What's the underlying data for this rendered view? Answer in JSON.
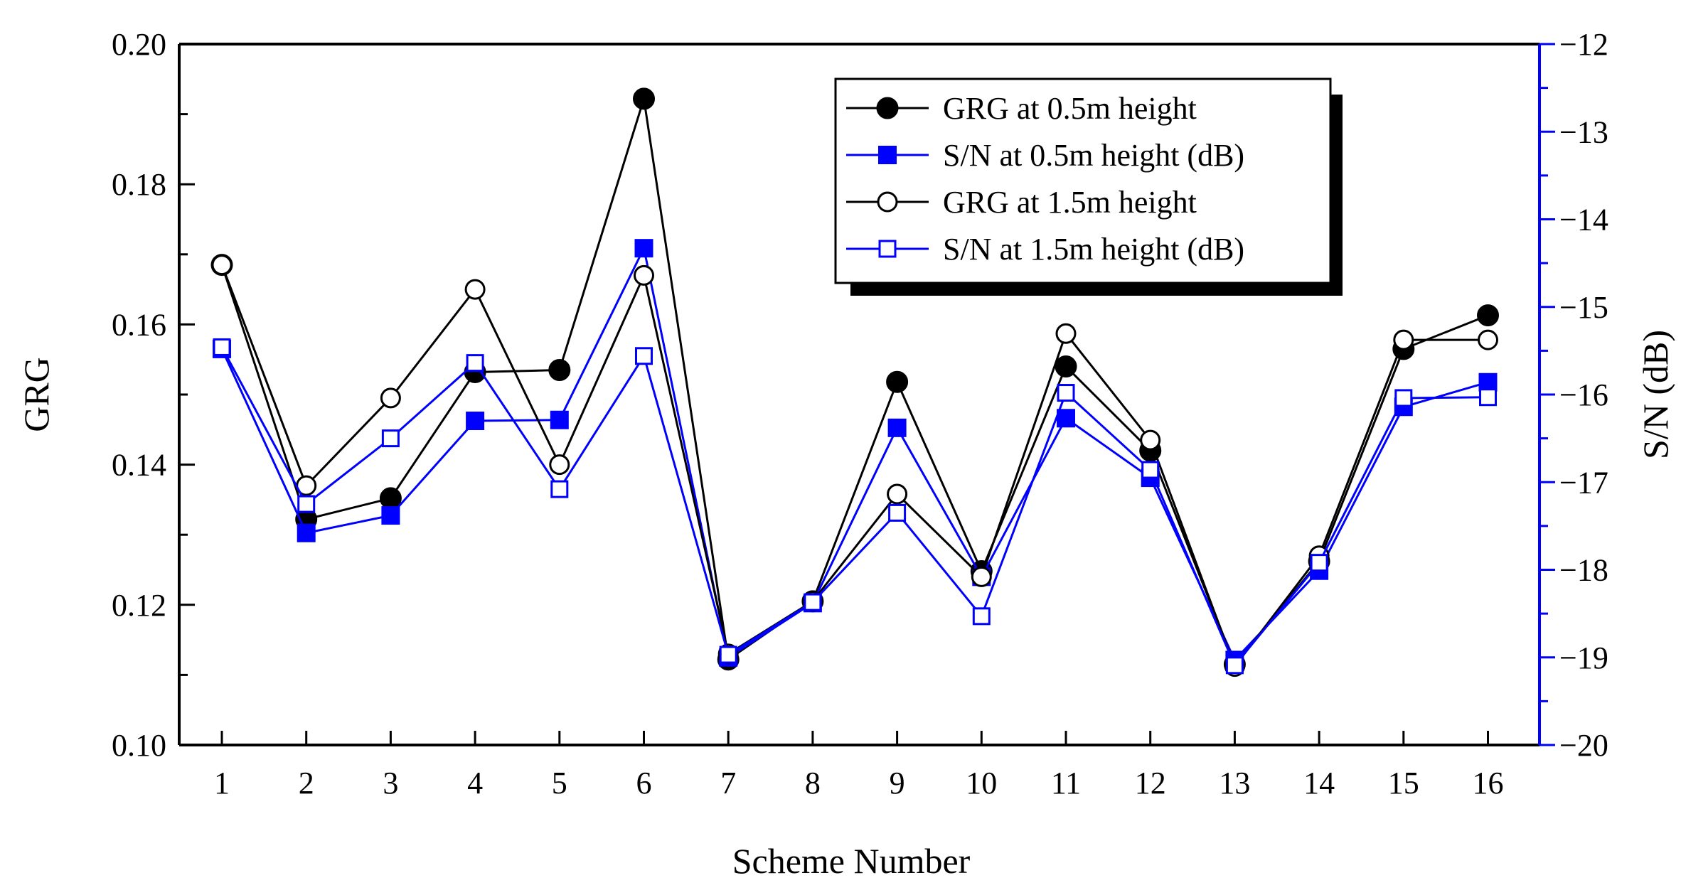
{
  "chart_data": {
    "type": "line",
    "xlabel": "Scheme Number",
    "ylabel_left": "GRG",
    "ylabel_right": "S/N (dB)",
    "categories": [
      "1",
      "2",
      "3",
      "4",
      "5",
      "6",
      "7",
      "8",
      "9",
      "10",
      "11",
      "12",
      "13",
      "14",
      "15",
      "16"
    ],
    "left_axis": {
      "ylim": [
        0.1,
        0.2
      ],
      "ticks": [
        0.1,
        0.12,
        0.14,
        0.16,
        0.18,
        0.2
      ],
      "tick_labels": [
        "0.10",
        "0.12",
        "0.14",
        "0.16",
        "0.18",
        "0.20"
      ]
    },
    "right_axis": {
      "ylim": [
        -20,
        -12
      ],
      "ticks": [
        -20,
        -19,
        -18,
        -17,
        -16,
        -15,
        -14,
        -13,
        -12
      ],
      "tick_labels": [
        "−20",
        "−19",
        "−18",
        "−17",
        "−16",
        "−15",
        "−14",
        "−13",
        "−12"
      ],
      "color": "#0000ff"
    },
    "legend_position": "top-right",
    "series": [
      {
        "name": "GRG at 0.5m height",
        "axis": "left",
        "color": "#000000",
        "marker": "circle-filled",
        "values": [
          0.1685,
          0.1322,
          0.1352,
          0.1532,
          0.1535,
          0.1922,
          0.1122,
          0.1205,
          0.1518,
          0.1248,
          0.154,
          0.142,
          0.1115,
          0.1262,
          0.1565,
          0.1613
        ]
      },
      {
        "name": "S/N at 0.5m height (dB)",
        "axis": "right",
        "color": "#0000ff",
        "marker": "square-filled",
        "values": [
          -15.48,
          -17.58,
          -17.38,
          -16.3,
          -16.29,
          -14.33,
          -19.0,
          -18.38,
          -16.38,
          -18.08,
          -16.27,
          -16.95,
          -19.03,
          -18.01,
          -16.14,
          -15.86
        ]
      },
      {
        "name": "GRG at 1.5m height",
        "axis": "left",
        "color": "#000000",
        "marker": "circle-open",
        "values": [
          0.1685,
          0.137,
          0.1495,
          0.165,
          0.14,
          0.167,
          0.113,
          0.1205,
          0.1358,
          0.124,
          0.1587,
          0.1435,
          0.1112,
          0.127,
          0.1578,
          0.1578
        ]
      },
      {
        "name": "S/N at 1.5m height (dB)",
        "axis": "right",
        "color": "#0000ff",
        "marker": "square-open",
        "values": [
          -15.46,
          -17.25,
          -16.5,
          -15.64,
          -17.08,
          -15.56,
          -18.97,
          -18.37,
          -17.35,
          -18.53,
          -15.98,
          -16.86,
          -19.09,
          -17.92,
          -16.04,
          -16.03
        ]
      }
    ]
  }
}
